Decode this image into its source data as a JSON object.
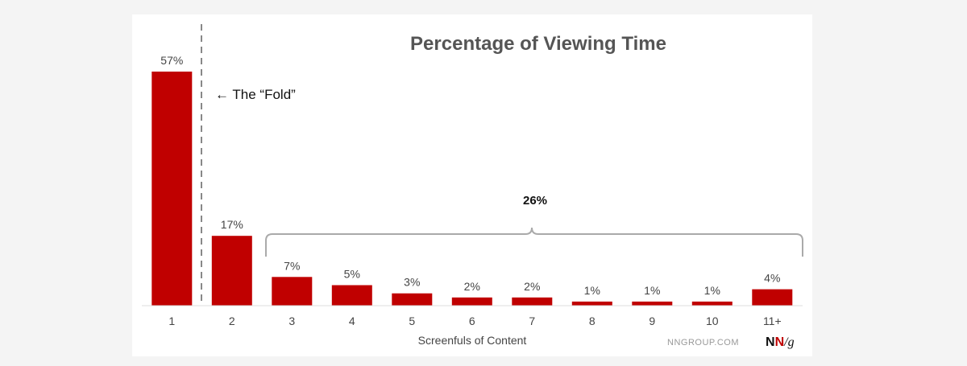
{
  "chart_data": {
    "type": "bar",
    "title": "Percentage of Viewing Time",
    "xlabel": "Screenfuls of Content",
    "ylabel": "",
    "categories": [
      "1",
      "2",
      "3",
      "4",
      "5",
      "6",
      "7",
      "8",
      "9",
      "10",
      "11+"
    ],
    "values": [
      57,
      17,
      7,
      5,
      3,
      2,
      2,
      1,
      1,
      1,
      4
    ],
    "labels": [
      "57%",
      "17%",
      "7%",
      "5%",
      "3%",
      "2%",
      "2%",
      "1%",
      "1%",
      "1%",
      "4%"
    ],
    "ylim": [
      0,
      57
    ],
    "grid": false,
    "bar_color": "#c00000",
    "annotations": {
      "fold": "← The “Fold”",
      "group_total": "26%"
    }
  },
  "source": {
    "site": "NNGROUP.COM",
    "logo_first": "N",
    "logo_second": "N",
    "logo_slash": "/g"
  },
  "colors": {
    "bar": "#c00000",
    "logo_red": "#c00000",
    "logo_dark": "#111111"
  }
}
